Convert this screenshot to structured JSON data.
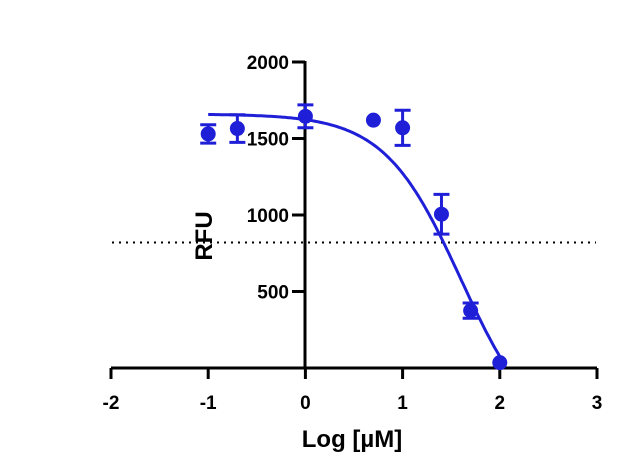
{
  "chart_data": {
    "type": "scatter",
    "title": "",
    "xlabel": "Log [µM]",
    "ylabel": "RFU",
    "xlim": [
      -2,
      3
    ],
    "ylim": [
      0,
      2000
    ],
    "x_ticks": [
      -2,
      -1,
      0,
      1,
      2,
      3
    ],
    "x_tick_labels": [
      "-2",
      "-1",
      "0",
      "1",
      "2",
      "3"
    ],
    "y_ticks": [
      500,
      1000,
      1500,
      2000
    ],
    "y_tick_labels": [
      "500",
      "1000",
      "1500",
      "2000"
    ],
    "grid": false,
    "legend": "none",
    "threshold_line": {
      "y": 820,
      "style": "dotted"
    },
    "series": [
      {
        "points": [
          {
            "x": -1.0,
            "y": 1530,
            "err": 60
          },
          {
            "x": -0.7,
            "y": 1565,
            "err": 90
          },
          {
            "x": 0.0,
            "y": 1645,
            "err": 75
          },
          {
            "x": 0.7,
            "y": 1620,
            "err": 0
          },
          {
            "x": 1.0,
            "y": 1570,
            "err": 115
          },
          {
            "x": 1.4,
            "y": 1005,
            "err": 130
          },
          {
            "x": 1.7,
            "y": 375,
            "err": 50
          },
          {
            "x": 2.0,
            "y": 35,
            "err": 0
          }
        ],
        "fit": {
          "model": "four-parameter logistic",
          "top": 1660,
          "bottom": -500,
          "logIC50": 1.6,
          "hill": -1.1,
          "x_range": [
            -1.0,
            2.0
          ]
        }
      }
    ],
    "colors": {
      "series": "#1f1fd8",
      "axis": "#000000",
      "threshold": "#000000"
    }
  }
}
